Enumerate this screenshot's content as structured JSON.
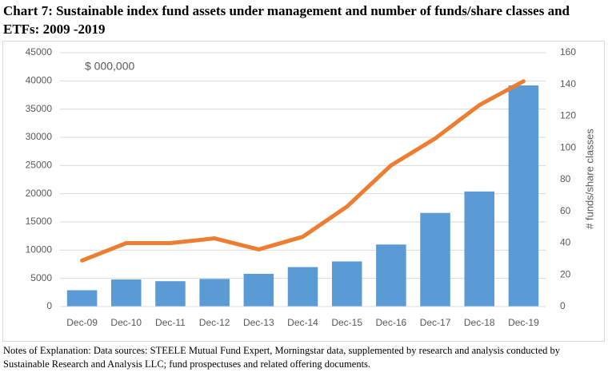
{
  "chart_data": {
    "type": "combo",
    "title": "Chart 7:  Sustainable index fund assets under management and number of funds/share classes and ETFs:  2009 -2019",
    "annotation": "$ 000,000",
    "y2label": "# funds/share classes",
    "notes": "Notes of Explanation:  Data sources:  STEELE Mutual Fund Expert, Morningstar data, supplemented by research and analysis conducted by Sustainable Research and Analysis LLC; fund prospectuses and related offering documents.",
    "categories": [
      "Dec-09",
      "Dec-10",
      "Dec-11",
      "Dec-12",
      "Dec-13",
      "Dec-14",
      "Dec-15",
      "Dec-16",
      "Dec-17",
      "Dec-18",
      "Dec-19"
    ],
    "series": [
      {
        "type": "bar",
        "color": "#5b9bd5",
        "values": [
          2900,
          4800,
          4500,
          4900,
          5800,
          7000,
          8000,
          11000,
          16600,
          20400,
          39200
        ]
      },
      {
        "type": "line",
        "axis": "y2",
        "color": "#ed7d31",
        "values": [
          29,
          40,
          40,
          43,
          36,
          44,
          63,
          89,
          106,
          127,
          142
        ]
      }
    ],
    "ylim": [
      0,
      45000
    ],
    "yticks": [
      0,
      5000,
      10000,
      15000,
      20000,
      25000,
      30000,
      35000,
      40000,
      45000
    ],
    "y2lim": [
      0,
      160
    ],
    "y2ticks": [
      0,
      20,
      40,
      60,
      80,
      100,
      120,
      140,
      160
    ],
    "grid": true
  }
}
